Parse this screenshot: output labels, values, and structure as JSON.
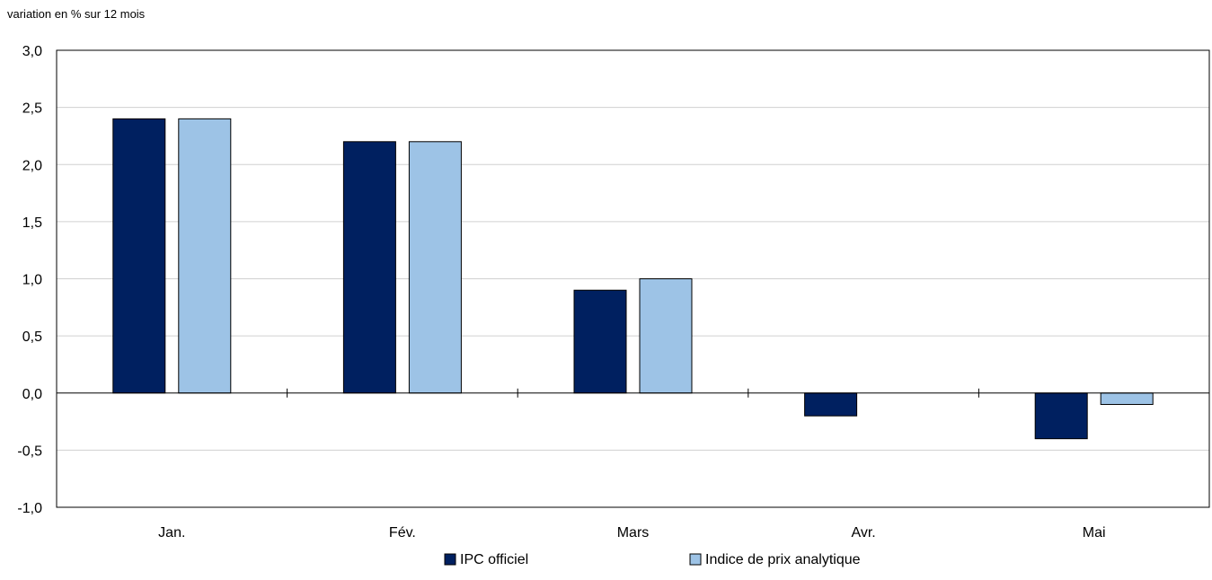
{
  "chart_data": {
    "type": "bar",
    "ylabel": "variation en % sur 12 mois",
    "categories": [
      "Jan.",
      "Fév.",
      "Mars",
      "Avr.",
      "Mai"
    ],
    "series": [
      {
        "name": "IPC officiel",
        "color": "#002060",
        "values": [
          2.4,
          2.2,
          0.9,
          -0.2,
          -0.4
        ]
      },
      {
        "name": "Indice de prix analytique",
        "color": "#9DC3E6",
        "values": [
          2.4,
          2.2,
          1.0,
          0.0,
          -0.1
        ]
      }
    ],
    "ylim": [
      -1.0,
      3.0
    ],
    "yticks": [
      "3,0",
      "2,5",
      "2,0",
      "1,5",
      "1,0",
      "0,5",
      "0,0",
      "-0,5",
      "-1,0"
    ],
    "ytick_values": [
      3.0,
      2.5,
      2.0,
      1.5,
      1.0,
      0.5,
      0.0,
      -0.5,
      -1.0
    ],
    "grid": true,
    "legend_position": "bottom-center"
  }
}
